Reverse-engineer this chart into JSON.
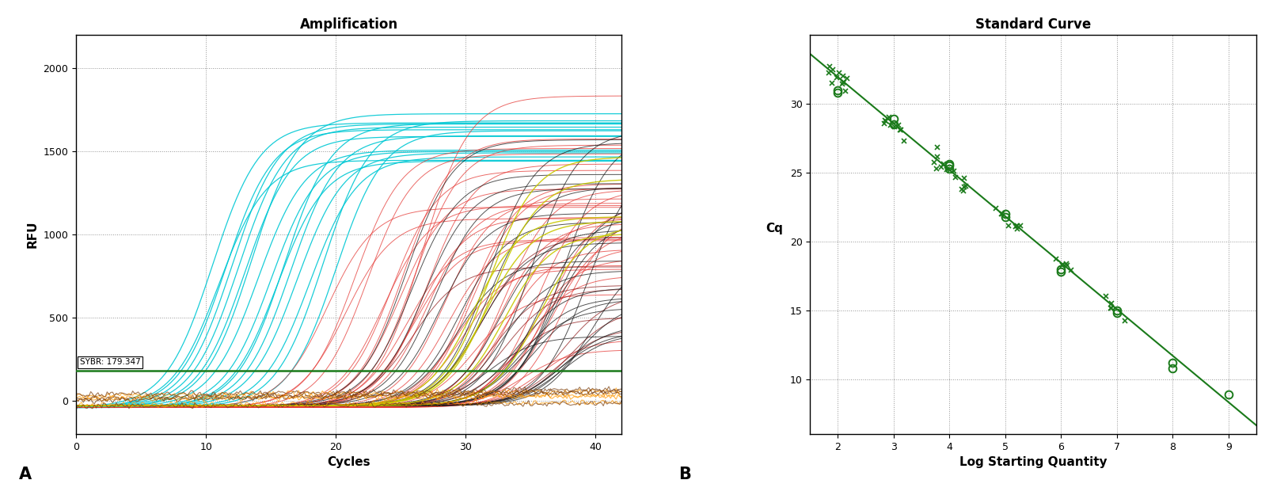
{
  "fig_width": 16.03,
  "fig_height": 6.3,
  "bg_color": "#ffffff",
  "panel_bg": "#ffffff",
  "left_title": "Amplification",
  "left_xlabel": "Cycles",
  "left_ylabel": "RFU",
  "left_xlim": [
    0,
    42
  ],
  "left_ylim": [
    -200,
    2200
  ],
  "left_xticks": [
    0,
    10,
    20,
    30,
    40
  ],
  "left_yticks": [
    0,
    500,
    1000,
    1500,
    2000
  ],
  "threshold_value": 179.347,
  "threshold_label": "SYBR: 179.347",
  "right_title": "Standard Curve",
  "right_xlabel": "Log Starting Quantity",
  "right_ylabel": "Cq",
  "right_xlim": [
    1.5,
    9.5
  ],
  "right_ylim": [
    6,
    35
  ],
  "right_xticks": [
    2,
    3,
    4,
    5,
    6,
    7,
    8,
    9
  ],
  "right_yticks": [
    10,
    15,
    20,
    25,
    30
  ],
  "slope": -3.373,
  "intercept": 38.684,
  "standard_points": [
    [
      2.0,
      31.0
    ],
    [
      2.0,
      30.8
    ],
    [
      3.0,
      28.9
    ],
    [
      3.0,
      28.5
    ],
    [
      4.0,
      25.5
    ],
    [
      4.0,
      25.3
    ],
    [
      4.0,
      25.6
    ],
    [
      5.0,
      22.0
    ],
    [
      5.0,
      21.8
    ],
    [
      6.0,
      18.0
    ],
    [
      6.0,
      17.8
    ],
    [
      7.0,
      15.0
    ],
    [
      7.0,
      14.8
    ],
    [
      8.0,
      11.2
    ],
    [
      8.0,
      10.8
    ],
    [
      9.0,
      8.9
    ]
  ],
  "green_color": "#1a7a1a",
  "cyan_color": "#00c8d4",
  "red_color": "#e53935",
  "black_color": "#1a1a1a",
  "yellow_color": "#c8c800",
  "orange_color": "#ff9800",
  "dark_red_color": "#8b1010",
  "brown_color": "#7b4010"
}
